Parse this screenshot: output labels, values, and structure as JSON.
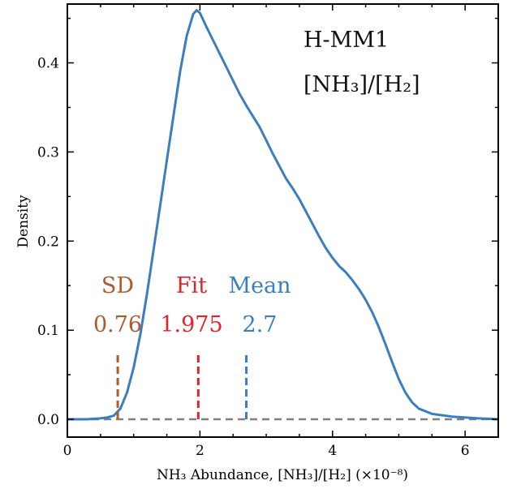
{
  "chart_data": {
    "type": "line",
    "title": "H-MM1",
    "subtitle": "[NH₃]/[H₂]",
    "xlabel": "NH₃ Abundance, [NH₃]/[H₂] (×10⁻⁸)",
    "ylabel": "Density",
    "xlim": [
      0,
      6.5
    ],
    "ylim": [
      -0.02,
      0.466
    ],
    "xticks": [
      0,
      2,
      4,
      6
    ],
    "yticks": [
      0.0,
      0.1,
      0.2,
      0.3,
      0.4
    ],
    "xtick_labels": [
      "0",
      "2",
      "4",
      "6"
    ],
    "ytick_labels": [
      "0.0",
      "0.1",
      "0.2",
      "0.3",
      "0.4"
    ],
    "series": [
      {
        "color": "#3a7ebf",
        "x": [
          0.0,
          0.3,
          0.5,
          0.6,
          0.7,
          0.8,
          0.9,
          1.0,
          1.1,
          1.2,
          1.3,
          1.4,
          1.5,
          1.6,
          1.7,
          1.8,
          1.9,
          1.95,
          2.0,
          2.05,
          2.1,
          2.2,
          2.3,
          2.4,
          2.5,
          2.6,
          2.7,
          2.8,
          2.9,
          3.0,
          3.1,
          3.2,
          3.3,
          3.4,
          3.5,
          3.6,
          3.7,
          3.8,
          3.9,
          4.0,
          4.1,
          4.2,
          4.3,
          4.4,
          4.5,
          4.6,
          4.7,
          4.8,
          4.9,
          5.0,
          5.1,
          5.2,
          5.3,
          5.5,
          5.8,
          6.2,
          6.5
        ],
        "y": [
          0.0,
          0.0,
          0.001,
          0.002,
          0.004,
          0.012,
          0.03,
          0.058,
          0.095,
          0.14,
          0.19,
          0.24,
          0.29,
          0.34,
          0.39,
          0.43,
          0.455,
          0.459,
          0.456,
          0.448,
          0.44,
          0.425,
          0.41,
          0.395,
          0.38,
          0.365,
          0.352,
          0.34,
          0.328,
          0.313,
          0.298,
          0.284,
          0.27,
          0.259,
          0.247,
          0.233,
          0.219,
          0.205,
          0.192,
          0.181,
          0.172,
          0.165,
          0.156,
          0.146,
          0.134,
          0.12,
          0.103,
          0.084,
          0.064,
          0.045,
          0.03,
          0.019,
          0.012,
          0.006,
          0.003,
          0.001,
          0.0
        ]
      }
    ],
    "baseline": {
      "y": 0.0,
      "color": "#808080",
      "style": "dashed"
    },
    "markers": [
      {
        "name": "SD",
        "value_label": "0.76",
        "x": 0.76,
        "height": 0.075,
        "color": "#b05a2a"
      },
      {
        "name": "Fit",
        "value_label": "1.975",
        "x": 1.975,
        "height": 0.075,
        "color": "#e0242c"
      },
      {
        "name": "Mean",
        "value_label": "2.7",
        "x": 2.7,
        "height": 0.075,
        "color": "#3a7ebf"
      }
    ],
    "grid": false,
    "legend": "none"
  }
}
